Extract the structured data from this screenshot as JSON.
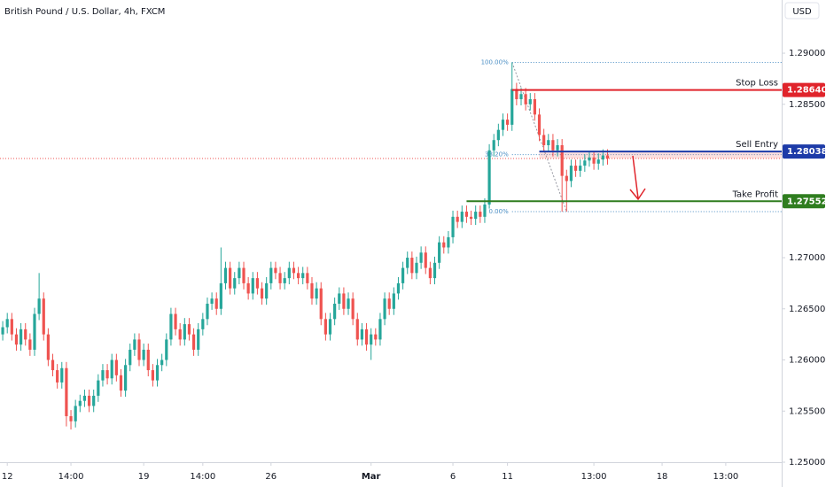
{
  "chart_data": {
    "type": "candlestick",
    "title": "British Pound / U.S. Dollar, 4h, FXCM",
    "currency": "USD",
    "up_color": "#26a69a",
    "down_color": "#ef5350",
    "xlim": [
      -0.6,
      171.3
    ],
    "ylim": [
      1.25,
      1.2952
    ],
    "xticks": [
      {
        "value": 1,
        "label": "12"
      },
      {
        "value": 15,
        "label": "14:00"
      },
      {
        "value": 31,
        "label": "19"
      },
      {
        "value": 44,
        "label": "14:00"
      },
      {
        "value": 59,
        "label": "26"
      },
      {
        "value": 81,
        "label": "Mar"
      },
      {
        "value": 99,
        "label": "6"
      },
      {
        "value": 111,
        "label": "11"
      },
      {
        "value": 130,
        "label": "13:00"
      },
      {
        "value": 145,
        "label": "18"
      },
      {
        "value": 159,
        "label": "13:00"
      }
    ],
    "yticks": [
      {
        "value": 1.29,
        "label": "1.29000"
      },
      {
        "value": 1.285,
        "label": "1.28500"
      },
      {
        "value": 1.27,
        "label": "1.27000"
      },
      {
        "value": 1.265,
        "label": "1.26500"
      },
      {
        "value": 1.26,
        "label": "1.26000"
      },
      {
        "value": 1.255,
        "label": "1.25500"
      },
      {
        "value": 1.25,
        "label": "1.25000"
      }
    ],
    "x": [
      0,
      1,
      2,
      3,
      4,
      5,
      6,
      7,
      8,
      9,
      10,
      11,
      12,
      13,
      14,
      15,
      16,
      17,
      18,
      19,
      20,
      21,
      22,
      23,
      24,
      25,
      26,
      27,
      28,
      29,
      30,
      31,
      32,
      33,
      34,
      35,
      36,
      37,
      38,
      39,
      40,
      41,
      42,
      43,
      44,
      45,
      46,
      47,
      48,
      49,
      50,
      51,
      52,
      53,
      54,
      55,
      56,
      57,
      58,
      59,
      60,
      61,
      62,
      63,
      64,
      65,
      66,
      67,
      68,
      69,
      70,
      71,
      72,
      73,
      74,
      75,
      76,
      77,
      78,
      79,
      80,
      81,
      82,
      83,
      84,
      85,
      86,
      87,
      88,
      89,
      90,
      91,
      92,
      93,
      94,
      95,
      96,
      97,
      98,
      99,
      100,
      101,
      102,
      103,
      104,
      105,
      106,
      107,
      108,
      109,
      110,
      111,
      112,
      113,
      114,
      115,
      116,
      117,
      118,
      119,
      120,
      121,
      122,
      123,
      124,
      125,
      126,
      127,
      128,
      129,
      130,
      131,
      132,
      133
    ],
    "open": [
      1.2625,
      1.2632,
      1.264,
      1.2625,
      1.2615,
      1.263,
      1.262,
      1.261,
      1.2645,
      1.266,
      1.2625,
      1.26,
      1.259,
      1.2578,
      1.2592,
      1.2545,
      1.254,
      1.2555,
      1.256,
      1.2565,
      1.2555,
      1.2565,
      1.258,
      1.259,
      1.2582,
      1.26,
      1.2585,
      1.257,
      1.2595,
      1.261,
      1.262,
      1.26,
      1.261,
      1.259,
      1.258,
      1.2595,
      1.26,
      1.262,
      1.2645,
      1.263,
      1.262,
      1.2635,
      1.2625,
      1.261,
      1.263,
      1.264,
      1.2655,
      1.266,
      1.265,
      1.2675,
      1.269,
      1.267,
      1.268,
      1.269,
      1.2675,
      1.2665,
      1.268,
      1.267,
      1.266,
      1.2675,
      1.269,
      1.2685,
      1.2675,
      1.268,
      1.269,
      1.2685,
      1.268,
      1.2685,
      1.2675,
      1.266,
      1.267,
      1.264,
      1.2625,
      1.264,
      1.2655,
      1.2665,
      1.265,
      1.266,
      1.264,
      1.262,
      1.263,
      1.2615,
      1.2625,
      1.262,
      1.264,
      1.266,
      1.265,
      1.2665,
      1.2675,
      1.269,
      1.27,
      1.2685,
      1.2695,
      1.2705,
      1.269,
      1.268,
      1.2695,
      1.2715,
      1.271,
      1.272,
      1.274,
      1.2735,
      1.2745,
      1.274,
      1.2738,
      1.2745,
      1.274,
      1.2752,
      1.2805,
      1.2815,
      1.2825,
      1.2835,
      1.283,
      1.2865,
      1.2855,
      1.286,
      1.285,
      1.2855,
      1.284,
      1.282,
      1.281,
      1.2815,
      1.2805,
      1.281,
      1.278,
      1.2775,
      1.279,
      1.2785,
      1.279,
      1.2795,
      1.2798,
      1.2792,
      1.2796,
      1.28
    ],
    "high": [
      1.2638,
      1.2646,
      1.2646,
      1.2631,
      1.2636,
      1.2636,
      1.2626,
      1.2651,
      1.2685,
      1.2666,
      1.2631,
      1.2606,
      1.2596,
      1.2598,
      1.2598,
      1.2551,
      1.2561,
      1.2566,
      1.2571,
      1.2571,
      1.2571,
      1.2586,
      1.2596,
      1.2596,
      1.2606,
      1.2606,
      1.2591,
      1.2601,
      1.2616,
      1.2626,
      1.2626,
      1.2616,
      1.2616,
      1.2596,
      1.2601,
      1.2606,
      1.2626,
      1.2651,
      1.2651,
      1.2636,
      1.2641,
      1.2641,
      1.2631,
      1.2636,
      1.2646,
      1.2661,
      1.2666,
      1.2666,
      1.271,
      1.2696,
      1.2696,
      1.2686,
      1.2696,
      1.2696,
      1.2681,
      1.2686,
      1.2686,
      1.2676,
      1.2681,
      1.2696,
      1.2696,
      1.2691,
      1.2686,
      1.2696,
      1.2696,
      1.2691,
      1.2691,
      1.2691,
      1.2681,
      1.2676,
      1.2676,
      1.2646,
      1.2646,
      1.2661,
      1.2671,
      1.2671,
      1.2666,
      1.2666,
      1.2646,
      1.2636,
      1.2636,
      1.2631,
      1.2631,
      1.2646,
      1.2666,
      1.2666,
      1.2671,
      1.2681,
      1.2696,
      1.2706,
      1.2706,
      1.2701,
      1.2711,
      1.2711,
      1.2696,
      1.2701,
      1.2721,
      1.2721,
      1.2726,
      1.2746,
      1.2746,
      1.2751,
      1.2751,
      1.2746,
      1.2751,
      1.2751,
      1.2758,
      1.2811,
      1.2821,
      1.2831,
      1.2841,
      1.2841,
      1.2891,
      1.2871,
      1.2866,
      1.2866,
      1.2861,
      1.2861,
      1.2846,
      1.2826,
      1.2821,
      1.2821,
      1.2816,
      1.2816,
      1.2786,
      1.2796,
      1.2796,
      1.2796,
      1.2801,
      1.2804,
      1.2804,
      1.2802,
      1.2806,
      1.2806
    ],
    "low": [
      1.2619,
      1.2626,
      1.2619,
      1.2609,
      1.2609,
      1.2614,
      1.2604,
      1.2604,
      1.2639,
      1.2619,
      1.2594,
      1.2584,
      1.2572,
      1.2572,
      1.2535,
      1.2532,
      1.2534,
      1.2549,
      1.2554,
      1.2549,
      1.2549,
      1.2559,
      1.2574,
      1.2576,
      1.2576,
      1.2579,
      1.2564,
      1.2564,
      1.2589,
      1.2604,
      1.2594,
      1.2594,
      1.2584,
      1.2574,
      1.2574,
      1.2589,
      1.2594,
      1.2614,
      1.2624,
      1.2614,
      1.2614,
      1.2619,
      1.2604,
      1.2604,
      1.2624,
      1.2634,
      1.2649,
      1.2644,
      1.2644,
      1.2669,
      1.2664,
      1.2664,
      1.2674,
      1.2669,
      1.2659,
      1.2659,
      1.2664,
      1.2654,
      1.2654,
      1.2669,
      1.2679,
      1.2669,
      1.2669,
      1.2674,
      1.2679,
      1.2674,
      1.2674,
      1.2669,
      1.2654,
      1.2654,
      1.2634,
      1.2619,
      1.2619,
      1.2634,
      1.2649,
      1.2644,
      1.2644,
      1.2634,
      1.2614,
      1.2614,
      1.2609,
      1.26,
      1.2614,
      1.2614,
      1.2634,
      1.2644,
      1.2644,
      1.2659,
      1.2669,
      1.2684,
      1.2679,
      1.2679,
      1.2689,
      1.2684,
      1.2674,
      1.2674,
      1.2689,
      1.2704,
      1.2704,
      1.2714,
      1.2729,
      1.2729,
      1.2734,
      1.2732,
      1.2732,
      1.2734,
      1.2734,
      1.2748,
      1.2799,
      1.2809,
      1.2819,
      1.2824,
      1.2824,
      1.2849,
      1.2849,
      1.2844,
      1.2844,
      1.2834,
      1.2814,
      1.2804,
      1.2804,
      1.2799,
      1.2799,
      1.2745,
      1.2745,
      1.2769,
      1.2779,
      1.2779,
      1.2784,
      1.2789,
      1.2786,
      1.2786,
      1.279,
      1.2791
    ],
    "close": [
      1.2632,
      1.264,
      1.2625,
      1.2615,
      1.263,
      1.262,
      1.261,
      1.2645,
      1.266,
      1.2625,
      1.26,
      1.259,
      1.2578,
      1.2592,
      1.2545,
      1.254,
      1.2555,
      1.256,
      1.2565,
      1.2555,
      1.2565,
      1.258,
      1.259,
      1.2582,
      1.26,
      1.2585,
      1.257,
      1.2595,
      1.261,
      1.262,
      1.26,
      1.261,
      1.259,
      1.258,
      1.2595,
      1.26,
      1.262,
      1.2645,
      1.263,
      1.262,
      1.2635,
      1.2625,
      1.261,
      1.263,
      1.264,
      1.2655,
      1.266,
      1.265,
      1.2675,
      1.269,
      1.267,
      1.268,
      1.269,
      1.2675,
      1.2665,
      1.268,
      1.267,
      1.266,
      1.2675,
      1.269,
      1.2685,
      1.2675,
      1.268,
      1.269,
      1.2685,
      1.268,
      1.2685,
      1.2675,
      1.266,
      1.267,
      1.264,
      1.2625,
      1.264,
      1.2655,
      1.2665,
      1.265,
      1.266,
      1.264,
      1.262,
      1.263,
      1.2615,
      1.2625,
      1.262,
      1.264,
      1.266,
      1.265,
      1.2665,
      1.2675,
      1.269,
      1.27,
      1.2685,
      1.2695,
      1.2705,
      1.269,
      1.268,
      1.2695,
      1.2715,
      1.271,
      1.272,
      1.274,
      1.2735,
      1.2745,
      1.274,
      1.2738,
      1.2745,
      1.274,
      1.2752,
      1.2805,
      1.2815,
      1.2825,
      1.2835,
      1.283,
      1.2865,
      1.2855,
      1.286,
      1.285,
      1.2855,
      1.284,
      1.282,
      1.281,
      1.2815,
      1.2805,
      1.281,
      1.278,
      1.2775,
      1.279,
      1.2785,
      1.279,
      1.2795,
      1.2798,
      1.2792,
      1.2796,
      1.28,
      1.2797
    ],
    "levels": [
      {
        "name": "Stop Loss",
        "value": 1.2864,
        "label": "1.28640",
        "color": "#e0242b",
        "from_x": 112
      },
      {
        "name": "Sell Entry",
        "value": 1.28038,
        "label": "1.28038",
        "color": "#1d3ba8",
        "from_x": 118
      },
      {
        "name": "Take Profit",
        "value": 1.27552,
        "label": "1.27552",
        "color": "#2f7d1f",
        "from_x": 102
      }
    ],
    "fib": {
      "from_x": 112,
      "to_x": 124,
      "high": 1.2891,
      "low": 1.2745,
      "color": "#4a8ec4",
      "levels": [
        {
          "value": 100,
          "label": "100.00%"
        },
        {
          "value": 38.2,
          "label": "38.20%"
        },
        {
          "value": 0,
          "label": "0.00%"
        }
      ]
    }
  }
}
